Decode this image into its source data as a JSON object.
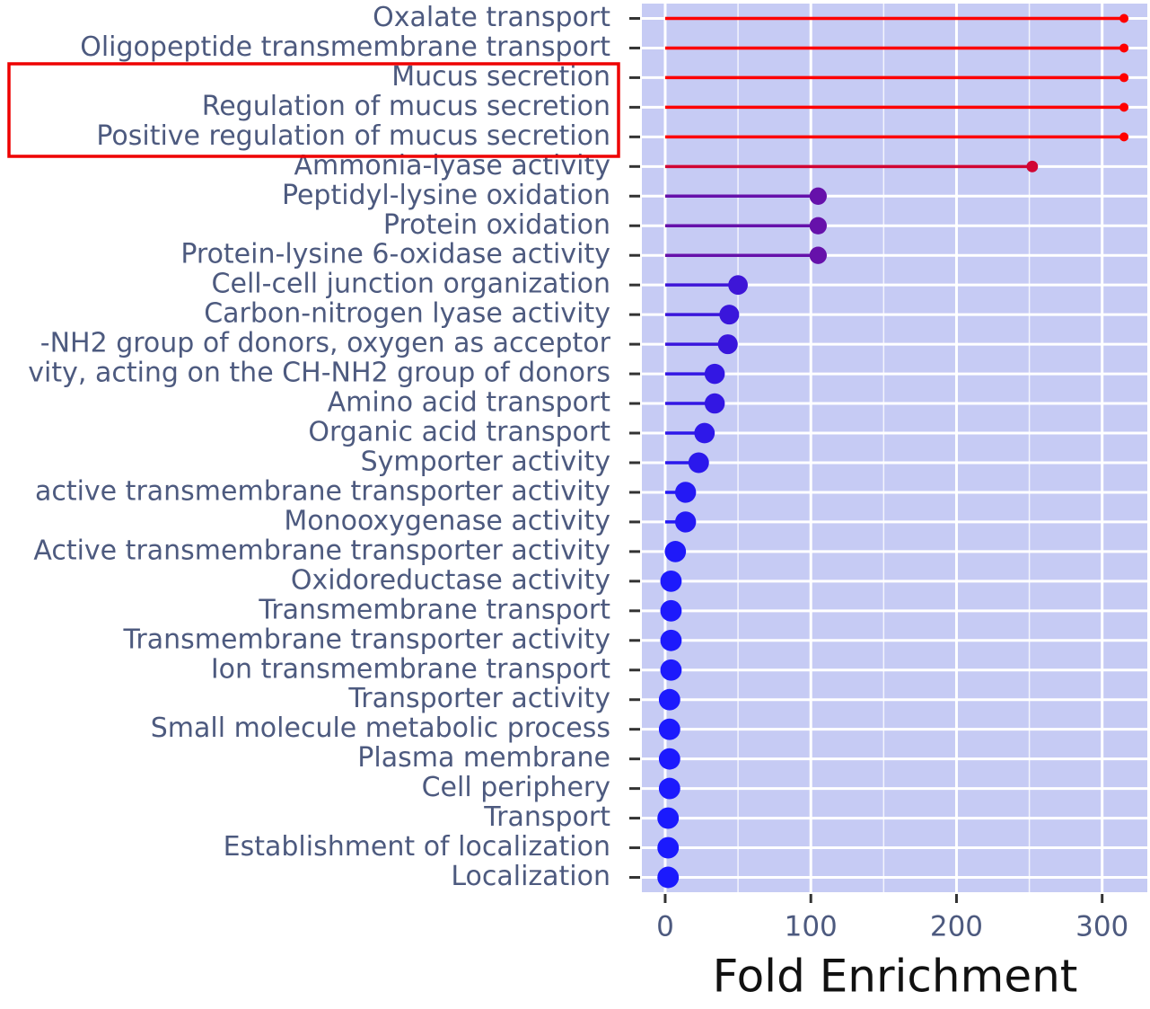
{
  "chart_data": {
    "type": "lollipop",
    "x_label": "Fold Enrichment",
    "categories": [
      "Oxalate transport",
      "Oligopeptide transmembrane transport",
      "Mucus secretion",
      "Regulation of mucus secretion",
      "Positive regulation of mucus secretion",
      "Ammonia-lyase activity",
      "Peptidyl-lysine oxidation",
      "Protein oxidation",
      "Protein-lysine 6-oxidase activity",
      "Cell-cell junction organization",
      "Carbon-nitrogen lyase activity",
      "-NH2 group of donors, oxygen as acceptor",
      "vity, acting on the CH-NH2 group of donors",
      "Amino acid transport",
      "Organic acid transport",
      "Symporter activity",
      "active transmembrane transporter activity",
      "Monooxygenase activity",
      "Active transmembrane transporter activity",
      "Oxidoreductase activity",
      "Transmembrane transport",
      "Transmembrane transporter activity",
      "Ion transmembrane transport",
      "Transporter activity",
      "Small molecule metabolic process",
      "Plasma membrane",
      "Cell periphery",
      "Transport",
      "Establishment of localization",
      "Localization"
    ],
    "values": [
      315,
      315,
      315,
      315,
      315,
      252,
      105,
      105,
      105,
      50,
      44,
      43,
      34,
      34,
      27,
      23,
      14,
      14,
      7,
      4,
      4,
      4,
      4,
      3,
      3,
      3,
      3,
      2,
      2,
      2
    ],
    "xlim": [
      -16,
      331
    ],
    "xticks": [
      0,
      100,
      200,
      300
    ],
    "color_scale": [
      "#1a1aff",
      "#ff0000"
    ],
    "background": "#c6cbf4",
    "grid": true
  }
}
